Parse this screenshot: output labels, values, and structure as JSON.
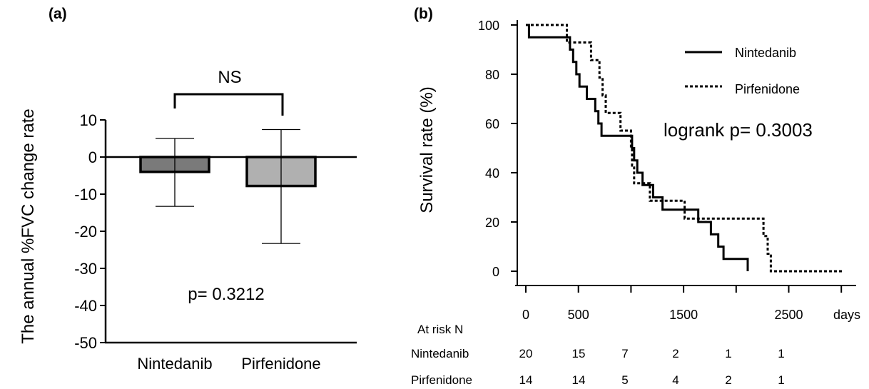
{
  "chart_data": [
    {
      "panel": "(a)",
      "type": "bar",
      "categories": [
        "Nintedanib",
        "Pirfenidone"
      ],
      "values": [
        -4.0,
        -7.8
      ],
      "error_low": [
        -13.3,
        -23.3
      ],
      "error_high": [
        5.0,
        7.4
      ],
      "bar_colors": [
        "#7a7a7a",
        "#b0b0b0"
      ],
      "ylabel": "The annual %FVC change rate",
      "ylim": [
        -50,
        10
      ],
      "yticks": [
        10,
        0,
        -10,
        -20,
        -30,
        -40,
        -50
      ],
      "ytick_labels": [
        "10",
        "0",
        "-10",
        "-20",
        "-30",
        "-40",
        "-50"
      ],
      "significance_label": "NS",
      "p_value_text": "p= 0.3212"
    },
    {
      "panel": "(b)",
      "type": "line",
      "subtype": "kaplan-meier",
      "ylabel": "Survival rate (%)",
      "xlabel": "days",
      "xlim": [
        -100,
        3200
      ],
      "ylim": [
        0,
        100
      ],
      "yticks": [
        0,
        20,
        40,
        60,
        80,
        100
      ],
      "xticks": [
        0,
        500,
        1500,
        2500
      ],
      "xtick_labels": [
        "0",
        "500",
        "1500",
        "2500"
      ],
      "x_minor_ticks": [
        1000,
        2000,
        3000
      ],
      "stat_text": "logrank p= 0.3003",
      "legend_position": "top-right",
      "series": [
        {
          "name": "Nintedanib",
          "style": "solid",
          "points": [
            [
              0,
              100
            ],
            [
              30,
              100
            ],
            [
              30,
              95
            ],
            [
              420,
              95
            ],
            [
              420,
              90
            ],
            [
              450,
              90
            ],
            [
              450,
              85
            ],
            [
              480,
              85
            ],
            [
              480,
              80
            ],
            [
              510,
              80
            ],
            [
              510,
              75
            ],
            [
              580,
              75
            ],
            [
              580,
              70
            ],
            [
              660,
              70
            ],
            [
              660,
              65
            ],
            [
              690,
              65
            ],
            [
              690,
              60
            ],
            [
              720,
              60
            ],
            [
              720,
              55
            ],
            [
              1010,
              55
            ],
            [
              1010,
              50
            ],
            [
              1030,
              50
            ],
            [
              1030,
              45
            ],
            [
              1060,
              45
            ],
            [
              1060,
              40
            ],
            [
              1110,
              40
            ],
            [
              1110,
              35
            ],
            [
              1210,
              35
            ],
            [
              1210,
              30
            ],
            [
              1300,
              30
            ],
            [
              1300,
              25
            ],
            [
              1640,
              25
            ],
            [
              1640,
              20
            ],
            [
              1760,
              20
            ],
            [
              1760,
              15
            ],
            [
              1830,
              15
            ],
            [
              1830,
              10
            ],
            [
              1880,
              10
            ],
            [
              1880,
              5
            ],
            [
              2110,
              5
            ],
            [
              2110,
              0
            ]
          ]
        },
        {
          "name": "Pirfenidone",
          "style": "dotted",
          "points": [
            [
              0,
              100
            ],
            [
              390,
              100
            ],
            [
              390,
              92.9
            ],
            [
              620,
              92.9
            ],
            [
              620,
              85.7
            ],
            [
              700,
              85.7
            ],
            [
              700,
              78.6
            ],
            [
              730,
              78.6
            ],
            [
              730,
              71.4
            ],
            [
              760,
              71.4
            ],
            [
              760,
              64.3
            ],
            [
              900,
              64.3
            ],
            [
              900,
              57.1
            ],
            [
              1000,
              57.1
            ],
            [
              1000,
              50
            ],
            [
              1010,
              50
            ],
            [
              1010,
              42.9
            ],
            [
              1030,
              42.9
            ],
            [
              1030,
              35.7
            ],
            [
              1180,
              35.7
            ],
            [
              1180,
              28.6
            ],
            [
              1510,
              28.6
            ],
            [
              1510,
              21.4
            ],
            [
              2260,
              21.4
            ],
            [
              2260,
              14.3
            ],
            [
              2300,
              14.3
            ],
            [
              2300,
              7.1
            ],
            [
              2330,
              7.1
            ],
            [
              2330,
              0
            ],
            [
              3020,
              0
            ]
          ]
        }
      ],
      "risk_table": {
        "header": "At risk N",
        "rows": [
          {
            "label": "Nintedanib",
            "values": [
              "20",
              "15",
              "7",
              "2",
              "1",
              "1"
            ]
          },
          {
            "label": "Pirfenidone",
            "values": [
              "14",
              "14",
              "5",
              "4",
              "2",
              "1"
            ]
          }
        ]
      }
    }
  ]
}
